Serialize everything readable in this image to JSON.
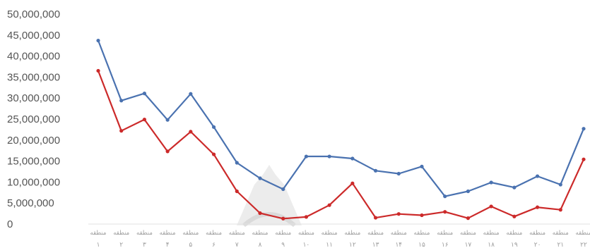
{
  "chart_data": {
    "type": "line",
    "title": "",
    "xlabel": "",
    "ylabel": "",
    "ylim": [
      0,
      50000000
    ],
    "yticks": [
      0,
      5000000,
      10000000,
      15000000,
      20000000,
      25000000,
      30000000,
      35000000,
      40000000,
      45000000,
      50000000
    ],
    "ytick_labels": [
      "0",
      "5,000,000",
      "10,000,000",
      "15,000,000",
      "20,000,000",
      "25,000,000",
      "30,000,000",
      "35,000,000",
      "40,000,000",
      "45,000,000",
      "50,000,000"
    ],
    "categories": [
      {
        "word": "منطقه",
        "num": "۱"
      },
      {
        "word": "منطقه",
        "num": "۲"
      },
      {
        "word": "منطقه",
        "num": "۳"
      },
      {
        "word": "منطقه",
        "num": "۴"
      },
      {
        "word": "منطقه",
        "num": "۵"
      },
      {
        "word": "منطقه",
        "num": "۶"
      },
      {
        "word": "منطقه",
        "num": "۷"
      },
      {
        "word": "منطقه",
        "num": "۸"
      },
      {
        "word": "منطقه",
        "num": "۹"
      },
      {
        "word": "منطقه",
        "num": "۱۰"
      },
      {
        "word": "منطقه",
        "num": "۱۱"
      },
      {
        "word": "منطقه",
        "num": "۱۲"
      },
      {
        "word": "منطقه",
        "num": "۱۳"
      },
      {
        "word": "منطقه",
        "num": "۱۴"
      },
      {
        "word": "منطقه",
        "num": "۱۵"
      },
      {
        "word": "منطقه",
        "num": "۱۶"
      },
      {
        "word": "منطقه",
        "num": "۱۷"
      },
      {
        "word": "منطقه",
        "num": "۱۸"
      },
      {
        "word": "منطقه",
        "num": "۱۹"
      },
      {
        "word": "منطقه",
        "num": "۲۰"
      },
      {
        "word": "منطقه",
        "num": "۲۱"
      },
      {
        "word": "منطقه",
        "num": "۲۲"
      }
    ],
    "series": [
      {
        "color": "#4a72b0",
        "values": [
          43700000,
          29400000,
          31100000,
          24800000,
          31000000,
          23100000,
          14600000,
          10900000,
          8300000,
          16100000,
          16100000,
          15600000,
          12700000,
          12000000,
          13700000,
          6600000,
          7800000,
          9900000,
          8700000,
          11400000,
          9400000,
          22700000
        ]
      },
      {
        "color": "#cc2a2a",
        "values": [
          36500000,
          22200000,
          24900000,
          17300000,
          22000000,
          16600000,
          7800000,
          2600000,
          1300000,
          1700000,
          4500000,
          9700000,
          1500000,
          2400000,
          2100000,
          2900000,
          1400000,
          4200000,
          1800000,
          4000000,
          3400000,
          15400000
        ]
      }
    ],
    "grid": false,
    "legend": "none"
  }
}
